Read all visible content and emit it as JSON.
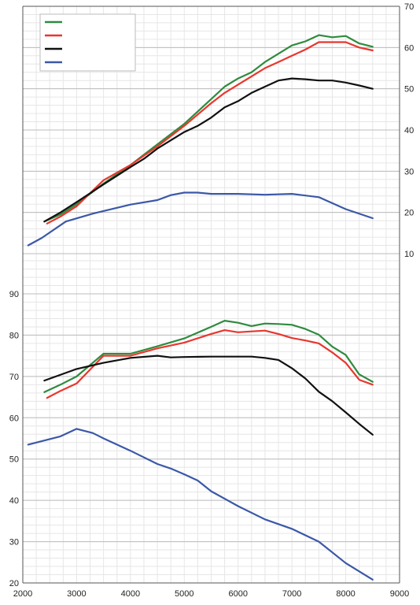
{
  "chart_data": [
    {
      "type": "line",
      "title": "",
      "xlabel": "",
      "ylabel": "",
      "y_axis_side": "right",
      "xlim": [
        2000,
        9000
      ],
      "ylim": [
        10,
        70
      ],
      "y_ticks": [
        10,
        20,
        30,
        40,
        50,
        60,
        70
      ],
      "y_tick_labels": [
        "10",
        "20",
        "30",
        "40",
        "50",
        "60",
        "70"
      ],
      "grid": true,
      "legend": {
        "placement": "top-left",
        "entries_labeled": false
      },
      "series": [
        {
          "color": "#2e8b3e",
          "x": [
            2400,
            2700,
            3000,
            3500,
            4000,
            4500,
            5000,
            5500,
            5750,
            6000,
            6250,
            6500,
            6750,
            7000,
            7250,
            7500,
            7750,
            8000,
            8250,
            8500
          ],
          "y": [
            17.8,
            19.5,
            22.0,
            27.0,
            31.5,
            36.5,
            41.5,
            47.5,
            50.5,
            52.5,
            54.0,
            56.5,
            58.5,
            60.5,
            61.5,
            63.0,
            62.5,
            62.8,
            61.0,
            60.2
          ]
        },
        {
          "color": "#e8372e",
          "x": [
            2450,
            2700,
            3000,
            3500,
            4000,
            4500,
            5000,
            5500,
            5750,
            6000,
            6250,
            6500,
            6750,
            7000,
            7250,
            7500,
            7750,
            8000,
            8250,
            8500
          ],
          "y": [
            17.3,
            19.0,
            21.5,
            27.8,
            31.5,
            36.0,
            41.0,
            46.5,
            49.0,
            51.0,
            53.0,
            55.0,
            56.5,
            58.0,
            59.5,
            61.3,
            61.3,
            61.3,
            60.0,
            59.3
          ]
        },
        {
          "color": "#111111",
          "x": [
            2400,
            2700,
            3000,
            3500,
            4000,
            4250,
            4500,
            5000,
            5250,
            5500,
            5750,
            6000,
            6250,
            6500,
            6750,
            7000,
            7250,
            7500,
            7750,
            8000,
            8250,
            8500
          ],
          "y": [
            17.8,
            20.0,
            22.5,
            26.8,
            31.0,
            33.0,
            35.5,
            39.5,
            41.0,
            43.0,
            45.5,
            47.0,
            49.0,
            50.5,
            52.0,
            52.5,
            52.3,
            52.0,
            52.0,
            51.5,
            50.8,
            50.0
          ]
        },
        {
          "color": "#3b58a8",
          "x": [
            2100,
            2350,
            2800,
            3300,
            4000,
            4500,
            4750,
            5000,
            5250,
            5500,
            6000,
            6500,
            7000,
            7500,
            8000,
            8500
          ],
          "y": [
            12.0,
            13.8,
            17.8,
            19.7,
            21.9,
            23.0,
            24.2,
            24.8,
            24.8,
            24.5,
            24.5,
            24.3,
            24.5,
            23.7,
            20.8,
            18.6
          ]
        }
      ]
    },
    {
      "type": "line",
      "title": "",
      "xlabel": "",
      "ylabel": "",
      "y_axis_side": "left",
      "xlim": [
        2000,
        9000
      ],
      "ylim": [
        20,
        90
      ],
      "x_ticks": [
        2000,
        3000,
        4000,
        5000,
        6000,
        7000,
        8000,
        9000
      ],
      "x_tick_labels": [
        "2000",
        "3000",
        "4000",
        "5000",
        "6000",
        "7000",
        "8000",
        "9000"
      ],
      "y_ticks": [
        20,
        30,
        40,
        50,
        60,
        70,
        80,
        90
      ],
      "y_tick_labels": [
        "20",
        "30",
        "40",
        "50",
        "60",
        "70",
        "80",
        "90"
      ],
      "grid": true,
      "series": [
        {
          "color": "#2e8b3e",
          "x": [
            2400,
            2700,
            3000,
            3500,
            4000,
            4500,
            5000,
            5500,
            5750,
            6000,
            6250,
            6500,
            6750,
            7000,
            7250,
            7500,
            7750,
            8000,
            8250,
            8500
          ],
          "y": [
            66.2,
            68.0,
            70.0,
            75.5,
            75.5,
            77.3,
            79.2,
            82.0,
            83.5,
            83.0,
            82.2,
            82.8,
            82.7,
            82.5,
            81.5,
            80.1,
            77.2,
            75.2,
            70.5,
            68.7
          ]
        },
        {
          "color": "#e8372e",
          "x": [
            2450,
            2700,
            3000,
            3500,
            4000,
            4500,
            5000,
            5500,
            5750,
            6000,
            6250,
            6500,
            6750,
            7000,
            7250,
            7500,
            7750,
            8000,
            8250,
            8500
          ],
          "y": [
            64.8,
            66.5,
            68.3,
            75.0,
            75.0,
            76.8,
            78.2,
            80.3,
            81.2,
            80.7,
            80.9,
            81.1,
            80.3,
            79.3,
            78.7,
            78.0,
            75.8,
            73.3,
            69.2,
            68.0
          ]
        },
        {
          "color": "#111111",
          "x": [
            2400,
            3000,
            3500,
            4000,
            4500,
            4750,
            5000,
            5500,
            6000,
            6250,
            6500,
            6750,
            7000,
            7250,
            7500,
            7750,
            8000,
            8250,
            8500
          ],
          "y": [
            69.0,
            71.8,
            73.3,
            74.5,
            75.0,
            74.6,
            74.7,
            74.8,
            74.8,
            74.8,
            74.5,
            74.0,
            72.0,
            69.5,
            66.3,
            64.0,
            61.3,
            58.5,
            55.9
          ]
        },
        {
          "color": "#3b58a8",
          "x": [
            2100,
            2700,
            3000,
            3300,
            3500,
            4000,
            4500,
            4750,
            5000,
            5250,
            5500,
            6000,
            6500,
            7000,
            7500,
            8000,
            8500
          ],
          "y": [
            53.5,
            55.5,
            57.3,
            56.3,
            55.0,
            52.0,
            48.8,
            47.7,
            46.3,
            44.8,
            42.2,
            38.6,
            35.4,
            33.1,
            30.0,
            24.8,
            20.8
          ]
        }
      ]
    }
  ]
}
